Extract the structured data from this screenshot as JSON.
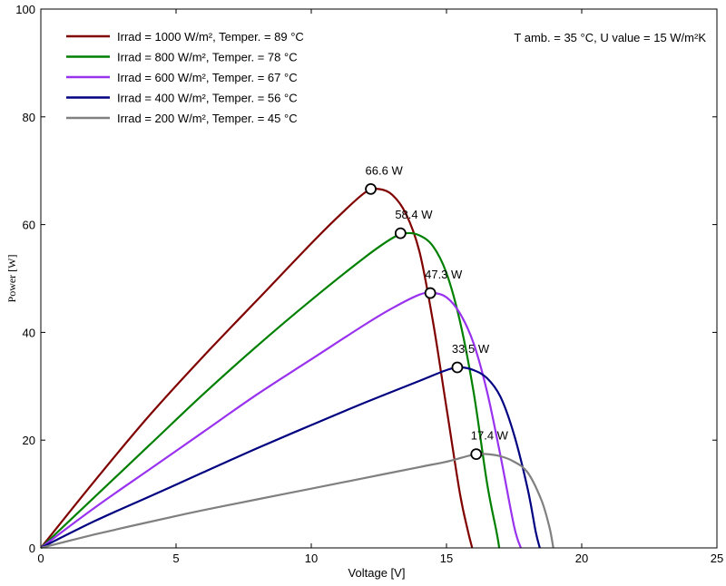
{
  "chart_data": {
    "type": "line",
    "title": "",
    "xlabel": "Voltage [V]",
    "ylabel": "Power [W]",
    "xlim": [
      0,
      25
    ],
    "ylim": [
      0,
      100
    ],
    "x_ticks": [
      "0",
      "5",
      "10",
      "15",
      "20",
      "25"
    ],
    "y_ticks": [
      "0",
      "20",
      "40",
      "60",
      "80",
      "100"
    ],
    "annotation": "T amb. = 35 °C,  U value = 15 W/m²K",
    "legend_position": "top-left",
    "series": [
      {
        "name": "Irrad = 1000 W/m², Temper. = 89 °C",
        "color": "#800000",
        "x": [
          0,
          2,
          4,
          6,
          8,
          10,
          11,
          12,
          12.5,
          13,
          13.5,
          14,
          14.5,
          15,
          15.5,
          15.8,
          15.95
        ],
        "y": [
          0,
          12.5,
          24.5,
          35.5,
          46,
          56.5,
          61.5,
          66,
          66.6,
          65.5,
          62,
          55,
          42,
          26,
          10,
          3,
          0
        ],
        "mpp": {
          "x": 12.2,
          "y": 66.6,
          "label": "66.6 W"
        }
      },
      {
        "name": "Irrad = 800 W/m², Temper. = 78 °C",
        "color": "#008000",
        "x": [
          0,
          2,
          4,
          6,
          8,
          10,
          12,
          13,
          13.5,
          14,
          14.5,
          15,
          15.5,
          16,
          16.5,
          16.85,
          16.95
        ],
        "y": [
          0,
          9.5,
          19,
          28.5,
          37.5,
          46,
          54,
          57.5,
          58.4,
          58,
          56,
          51,
          42,
          29,
          12,
          3,
          0
        ],
        "mpp": {
          "x": 13.3,
          "y": 58.4,
          "label": "58.4 W"
        }
      },
      {
        "name": "Irrad = 600 W/m², Temper. = 67 °C",
        "color": "#9932ee",
        "x": [
          0,
          2,
          4,
          6,
          8,
          10,
          12,
          13,
          14,
          14.5,
          15,
          15.5,
          16,
          16.5,
          17,
          17.5,
          17.75
        ],
        "y": [
          0,
          7.5,
          14.5,
          21.5,
          28.5,
          35,
          41.5,
          44.5,
          47,
          47.3,
          46.5,
          43.5,
          38,
          29,
          17,
          4,
          0
        ],
        "mpp": {
          "x": 14.4,
          "y": 47.3,
          "label": "47.3 W"
        }
      },
      {
        "name": "Irrad = 400 W/m², Temper. = 56 °C",
        "color": "#000080",
        "x": [
          0,
          2,
          4,
          6,
          8,
          10,
          12,
          14,
          15,
          15.5,
          16,
          16.5,
          17,
          17.5,
          18,
          18.3,
          18.45
        ],
        "y": [
          0,
          5,
          9.5,
          14,
          18.5,
          22.8,
          27,
          31,
          33,
          33.5,
          33,
          31.5,
          28,
          21,
          11,
          3,
          0
        ],
        "mpp": {
          "x": 15.4,
          "y": 33.5,
          "label": "33.5 W"
        }
      },
      {
        "name": "Irrad = 200 W/m², Temper. = 45 °C",
        "color": "#808080",
        "x": [
          0,
          2,
          4,
          6,
          8,
          10,
          12,
          14,
          15,
          16,
          16.5,
          17,
          17.5,
          18,
          18.5,
          18.8,
          18.95
        ],
        "y": [
          0,
          2.5,
          4.8,
          7,
          9,
          11,
          13,
          15,
          16,
          17.3,
          17.4,
          17,
          16,
          14,
          9,
          4,
          0
        ],
        "mpp": {
          "x": 16.1,
          "y": 17.4,
          "label": "17.4 W"
        }
      }
    ]
  }
}
